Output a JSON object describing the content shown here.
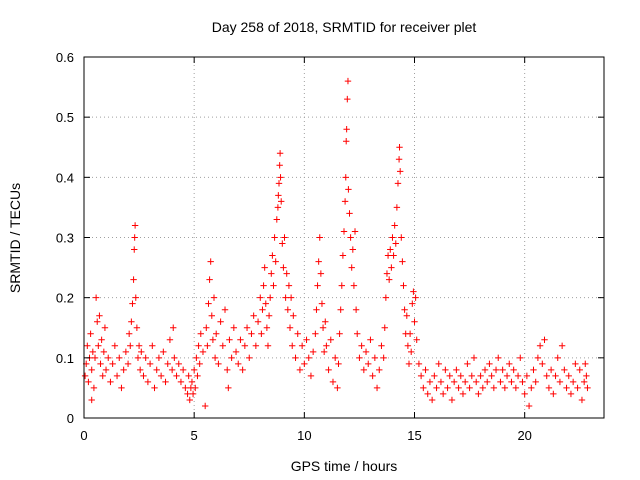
{
  "chart_data": {
    "type": "scatter",
    "title": "Day 258 of 2018, SRMTID for receiver plet",
    "xlabel": "GPS time / hours",
    "ylabel": "SRMTID / TECUs",
    "xlim": [
      0,
      23.6
    ],
    "ylim": [
      0,
      0.6
    ],
    "xticks": [
      0,
      5,
      10,
      15,
      20
    ],
    "xtick_labels": [
      "0",
      "5",
      "10",
      "15",
      "20"
    ],
    "yticks": [
      0,
      0.1,
      0.2,
      0.3,
      0.4,
      0.5,
      0.6
    ],
    "ytick_labels": [
      "0",
      "0.1",
      "0.2",
      "0.3",
      "0.4",
      "0.5",
      "0.6"
    ],
    "grid": true,
    "marker": "+",
    "series": [
      {
        "name": "SRMTID",
        "color": "#ff0000",
        "points": [
          [
            0.05,
            0.07
          ],
          [
            0.1,
            0.09
          ],
          [
            0.15,
            0.12
          ],
          [
            0.2,
            0.06
          ],
          [
            0.25,
            0.1
          ],
          [
            0.3,
            0.14
          ],
          [
            0.35,
            0.08
          ],
          [
            0.4,
            0.11
          ],
          [
            0.45,
            0.05
          ],
          [
            0.5,
            0.1
          ],
          [
            0.35,
            0.03
          ],
          [
            0.55,
            0.2
          ],
          [
            0.6,
            0.16
          ],
          [
            0.65,
            0.12
          ],
          [
            0.7,
            0.17
          ],
          [
            0.75,
            0.09
          ],
          [
            0.8,
            0.13
          ],
          [
            0.85,
            0.07
          ],
          [
            0.9,
            0.11
          ],
          [
            0.95,
            0.15
          ],
          [
            1.0,
            0.08
          ],
          [
            1.1,
            0.1
          ],
          [
            1.2,
            0.06
          ],
          [
            1.3,
            0.09
          ],
          [
            1.4,
            0.12
          ],
          [
            1.5,
            0.07
          ],
          [
            1.6,
            0.1
          ],
          [
            1.7,
            0.05
          ],
          [
            1.8,
            0.08
          ],
          [
            1.9,
            0.11
          ],
          [
            2.0,
            0.09
          ],
          [
            2.05,
            0.14
          ],
          [
            2.1,
            0.12
          ],
          [
            2.15,
            0.16
          ],
          [
            2.2,
            0.19
          ],
          [
            2.25,
            0.23
          ],
          [
            2.28,
            0.28
          ],
          [
            2.3,
            0.3
          ],
          [
            2.32,
            0.32
          ],
          [
            2.35,
            0.2
          ],
          [
            2.4,
            0.15
          ],
          [
            2.45,
            0.1
          ],
          [
            2.5,
            0.12
          ],
          [
            2.55,
            0.08
          ],
          [
            2.6,
            0.11
          ],
          [
            2.7,
            0.07
          ],
          [
            2.8,
            0.1
          ],
          [
            2.9,
            0.06
          ],
          [
            3.0,
            0.09
          ],
          [
            3.1,
            0.12
          ],
          [
            3.2,
            0.05
          ],
          [
            3.3,
            0.08
          ],
          [
            3.4,
            0.1
          ],
          [
            3.5,
            0.07
          ],
          [
            3.6,
            0.11
          ],
          [
            3.7,
            0.06
          ],
          [
            3.8,
            0.09
          ],
          [
            3.9,
            0.13
          ],
          [
            4.0,
            0.08
          ],
          [
            4.05,
            0.15
          ],
          [
            4.1,
            0.1
          ],
          [
            4.2,
            0.07
          ],
          [
            4.3,
            0.09
          ],
          [
            4.4,
            0.06
          ],
          [
            4.5,
            0.08
          ],
          [
            4.6,
            0.05
          ],
          [
            4.7,
            0.04
          ],
          [
            4.75,
            0.07
          ],
          [
            4.8,
            0.03
          ],
          [
            4.85,
            0.05
          ],
          [
            4.9,
            0.06
          ],
          [
            4.95,
            0.04
          ],
          [
            5.0,
            0.08
          ],
          [
            5.05,
            0.05
          ],
          [
            5.1,
            0.1
          ],
          [
            5.15,
            0.07
          ],
          [
            5.2,
            0.12
          ],
          [
            5.25,
            0.09
          ],
          [
            5.3,
            0.14
          ],
          [
            5.4,
            0.11
          ],
          [
            5.5,
            0.02
          ],
          [
            5.55,
            0.15
          ],
          [
            5.6,
            0.12
          ],
          [
            5.65,
            0.19
          ],
          [
            5.7,
            0.23
          ],
          [
            5.75,
            0.26
          ],
          [
            5.8,
            0.17
          ],
          [
            5.85,
            0.13
          ],
          [
            5.9,
            0.2
          ],
          [
            5.95,
            0.1
          ],
          [
            6.0,
            0.14
          ],
          [
            6.1,
            0.09
          ],
          [
            6.2,
            0.16
          ],
          [
            6.3,
            0.12
          ],
          [
            6.4,
            0.18
          ],
          [
            6.5,
            0.08
          ],
          [
            6.55,
            0.05
          ],
          [
            6.6,
            0.13
          ],
          [
            6.7,
            0.1
          ],
          [
            6.8,
            0.15
          ],
          [
            6.9,
            0.11
          ],
          [
            7.0,
            0.09
          ],
          [
            7.1,
            0.13
          ],
          [
            7.2,
            0.08
          ],
          [
            7.3,
            0.12
          ],
          [
            7.4,
            0.15
          ],
          [
            7.5,
            0.1
          ],
          [
            7.6,
            0.14
          ],
          [
            7.7,
            0.17
          ],
          [
            7.8,
            0.12
          ],
          [
            7.9,
            0.16
          ],
          [
            8.0,
            0.2
          ],
          [
            8.05,
            0.14
          ],
          [
            8.1,
            0.18
          ],
          [
            8.15,
            0.22
          ],
          [
            8.2,
            0.25
          ],
          [
            8.25,
            0.19
          ],
          [
            8.3,
            0.15
          ],
          [
            8.35,
            0.12
          ],
          [
            8.4,
            0.17
          ],
          [
            8.45,
            0.2
          ],
          [
            8.5,
            0.24
          ],
          [
            8.55,
            0.27
          ],
          [
            8.6,
            0.22
          ],
          [
            8.65,
            0.3
          ],
          [
            8.7,
            0.26
          ],
          [
            8.75,
            0.33
          ],
          [
            8.8,
            0.35
          ],
          [
            8.82,
            0.37
          ],
          [
            8.85,
            0.39
          ],
          [
            8.88,
            0.42
          ],
          [
            8.9,
            0.44
          ],
          [
            8.92,
            0.4
          ],
          [
            8.95,
            0.36
          ],
          [
            9.0,
            0.29
          ],
          [
            9.05,
            0.25
          ],
          [
            9.1,
            0.3
          ],
          [
            9.15,
            0.2
          ],
          [
            9.2,
            0.24
          ],
          [
            9.25,
            0.18
          ],
          [
            9.3,
            0.22
          ],
          [
            9.35,
            0.15
          ],
          [
            9.4,
            0.2
          ],
          [
            9.45,
            0.12
          ],
          [
            9.5,
            0.17
          ],
          [
            9.6,
            0.1
          ],
          [
            9.7,
            0.14
          ],
          [
            9.8,
            0.08
          ],
          [
            9.9,
            0.12
          ],
          [
            10.0,
            0.09
          ],
          [
            10.1,
            0.13
          ],
          [
            10.2,
            0.1
          ],
          [
            10.3,
            0.07
          ],
          [
            10.4,
            0.11
          ],
          [
            10.5,
            0.14
          ],
          [
            10.55,
            0.18
          ],
          [
            10.6,
            0.22
          ],
          [
            10.65,
            0.26
          ],
          [
            10.7,
            0.3
          ],
          [
            10.75,
            0.24
          ],
          [
            10.8,
            0.19
          ],
          [
            10.85,
            0.15
          ],
          [
            10.9,
            0.11
          ],
          [
            10.95,
            0.16
          ],
          [
            11.0,
            0.12
          ],
          [
            11.1,
            0.08
          ],
          [
            11.2,
            0.13
          ],
          [
            11.3,
            0.06
          ],
          [
            11.4,
            0.1
          ],
          [
            11.5,
            0.05
          ],
          [
            11.55,
            0.09
          ],
          [
            11.6,
            0.14
          ],
          [
            11.65,
            0.18
          ],
          [
            11.7,
            0.22
          ],
          [
            11.75,
            0.27
          ],
          [
            11.8,
            0.31
          ],
          [
            11.85,
            0.36
          ],
          [
            11.88,
            0.4
          ],
          [
            11.9,
            0.46
          ],
          [
            11.92,
            0.48
          ],
          [
            11.95,
            0.53
          ],
          [
            11.98,
            0.56
          ],
          [
            12.0,
            0.38
          ],
          [
            12.05,
            0.34
          ],
          [
            12.1,
            0.3
          ],
          [
            12.15,
            0.25
          ],
          [
            12.2,
            0.28
          ],
          [
            12.25,
            0.22
          ],
          [
            12.3,
            0.31
          ],
          [
            12.35,
            0.18
          ],
          [
            12.4,
            0.14
          ],
          [
            12.5,
            0.1
          ],
          [
            12.6,
            0.12
          ],
          [
            12.7,
            0.08
          ],
          [
            12.8,
            0.11
          ],
          [
            12.9,
            0.09
          ],
          [
            13.0,
            0.13
          ],
          [
            13.1,
            0.07
          ],
          [
            13.2,
            0.1
          ],
          [
            13.3,
            0.05
          ],
          [
            13.4,
            0.08
          ],
          [
            13.5,
            0.12
          ],
          [
            13.6,
            0.1
          ],
          [
            13.65,
            0.15
          ],
          [
            13.7,
            0.2
          ],
          [
            13.75,
            0.24
          ],
          [
            13.8,
            0.27
          ],
          [
            13.85,
            0.23
          ],
          [
            13.9,
            0.28
          ],
          [
            13.95,
            0.25
          ],
          [
            14.0,
            0.3
          ],
          [
            14.05,
            0.27
          ],
          [
            14.1,
            0.32
          ],
          [
            14.15,
            0.29
          ],
          [
            14.2,
            0.35
          ],
          [
            14.25,
            0.39
          ],
          [
            14.3,
            0.43
          ],
          [
            14.32,
            0.45
          ],
          [
            14.35,
            0.41
          ],
          [
            14.4,
            0.3
          ],
          [
            14.45,
            0.26
          ],
          [
            14.5,
            0.22
          ],
          [
            14.55,
            0.18
          ],
          [
            14.6,
            0.14
          ],
          [
            14.65,
            0.17
          ],
          [
            14.7,
            0.12
          ],
          [
            14.75,
            0.09
          ],
          [
            14.8,
            0.14
          ],
          [
            14.85,
            0.11
          ],
          [
            14.9,
            0.19
          ],
          [
            14.95,
            0.21
          ],
          [
            15.0,
            0.16
          ],
          [
            15.05,
            0.2
          ],
          [
            15.1,
            0.13
          ],
          [
            15.2,
            0.09
          ],
          [
            15.3,
            0.07
          ],
          [
            15.4,
            0.05
          ],
          [
            15.5,
            0.08
          ],
          [
            15.6,
            0.04
          ],
          [
            15.7,
            0.06
          ],
          [
            15.8,
            0.03
          ],
          [
            15.9,
            0.07
          ],
          [
            16.0,
            0.05
          ],
          [
            16.1,
            0.09
          ],
          [
            16.2,
            0.06
          ],
          [
            16.3,
            0.04
          ],
          [
            16.4,
            0.08
          ],
          [
            16.5,
            0.05
          ],
          [
            16.6,
            0.07
          ],
          [
            16.7,
            0.03
          ],
          [
            16.8,
            0.06
          ],
          [
            16.9,
            0.08
          ],
          [
            17.0,
            0.05
          ],
          [
            17.1,
            0.07
          ],
          [
            17.2,
            0.04
          ],
          [
            17.3,
            0.06
          ],
          [
            17.4,
            0.09
          ],
          [
            17.5,
            0.05
          ],
          [
            17.6,
            0.07
          ],
          [
            17.7,
            0.1
          ],
          [
            17.8,
            0.06
          ],
          [
            17.9,
            0.04
          ],
          [
            18.0,
            0.07
          ],
          [
            18.1,
            0.05
          ],
          [
            18.2,
            0.08
          ],
          [
            18.3,
            0.06
          ],
          [
            18.4,
            0.09
          ],
          [
            18.5,
            0.07
          ],
          [
            18.6,
            0.05
          ],
          [
            18.7,
            0.08
          ],
          [
            18.8,
            0.1
          ],
          [
            18.9,
            0.06
          ],
          [
            19.0,
            0.08
          ],
          [
            19.1,
            0.05
          ],
          [
            19.2,
            0.07
          ],
          [
            19.3,
            0.09
          ],
          [
            19.4,
            0.06
          ],
          [
            19.5,
            0.08
          ],
          [
            19.6,
            0.05
          ],
          [
            19.7,
            0.07
          ],
          [
            19.8,
            0.1
          ],
          [
            19.9,
            0.06
          ],
          [
            20.0,
            0.04
          ],
          [
            20.1,
            0.07
          ],
          [
            20.2,
            0.02
          ],
          [
            20.3,
            0.05
          ],
          [
            20.4,
            0.08
          ],
          [
            20.5,
            0.06
          ],
          [
            20.6,
            0.1
          ],
          [
            20.7,
            0.12
          ],
          [
            20.8,
            0.09
          ],
          [
            20.9,
            0.13
          ],
          [
            21.0,
            0.07
          ],
          [
            21.1,
            0.05
          ],
          [
            21.2,
            0.08
          ],
          [
            21.3,
            0.04
          ],
          [
            21.4,
            0.07
          ],
          [
            21.5,
            0.1
          ],
          [
            21.6,
            0.06
          ],
          [
            21.7,
            0.12
          ],
          [
            21.8,
            0.08
          ],
          [
            21.9,
            0.05
          ],
          [
            22.0,
            0.07
          ],
          [
            22.1,
            0.04
          ],
          [
            22.2,
            0.06
          ],
          [
            22.3,
            0.09
          ],
          [
            22.4,
            0.05
          ],
          [
            22.5,
            0.08
          ],
          [
            22.6,
            0.03
          ],
          [
            22.7,
            0.06
          ],
          [
            22.75,
            0.09
          ],
          [
            22.8,
            0.07
          ],
          [
            22.85,
            0.05
          ]
        ]
      }
    ]
  }
}
